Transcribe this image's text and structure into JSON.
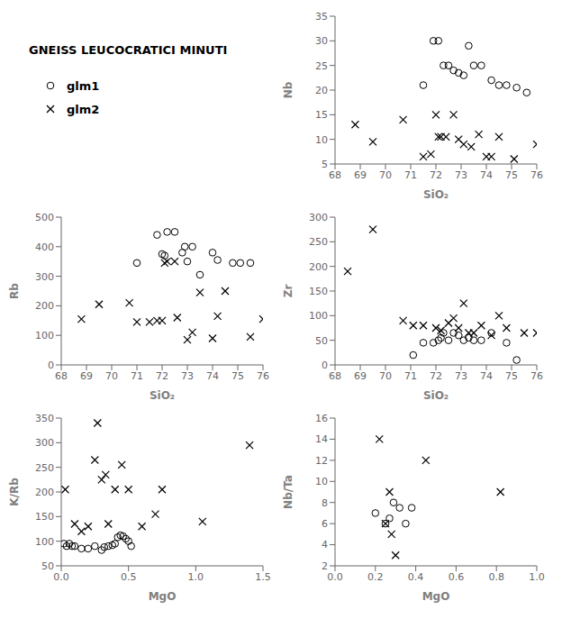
{
  "chart_data": [
    {
      "type": "scatter",
      "title": "GNEISS LEUCOCRATICI MINUTI",
      "xlabel": "SiO₂",
      "ylabel": "Nb",
      "grid": false,
      "xlim": [
        68,
        76
      ],
      "ylim": [
        5,
        35
      ],
      "xticks": [
        68,
        69,
        70,
        71,
        72,
        73,
        74,
        75,
        76
      ],
      "yticks": [
        5,
        10,
        15,
        20,
        25,
        30,
        35
      ],
      "series": [
        {
          "name": "glm1",
          "color": "black",
          "marker": "circle",
          "x": [
            71.5,
            71.9,
            72.1,
            72.3,
            72.5,
            72.7,
            72.9,
            73.1,
            73.3,
            73.5,
            73.8,
            74.2,
            74.5,
            74.8,
            75.2,
            75.6
          ],
          "values": [
            21.0,
            30.0,
            30.0,
            25.0,
            25.0,
            24.0,
            23.5,
            23.0,
            29.0,
            25.0,
            25.0,
            22.0,
            21.0,
            21.0,
            20.5,
            19.5
          ]
        },
        {
          "name": "glm2",
          "color": "black",
          "marker": "cross",
          "x": [
            68.8,
            69.5,
            70.7,
            71.5,
            71.8,
            72.0,
            72.1,
            72.2,
            72.4,
            72.7,
            72.9,
            73.1,
            73.4,
            73.7,
            74.0,
            74.2,
            74.5,
            75.1,
            76.0
          ],
          "values": [
            13.0,
            9.5,
            14.0,
            6.5,
            7.0,
            15.0,
            10.5,
            10.5,
            10.5,
            15.0,
            10.0,
            9.0,
            8.5,
            11.0,
            6.5,
            6.5,
            10.5,
            6.0,
            9.0
          ]
        }
      ]
    },
    {
      "type": "scatter",
      "xlabel": "SiO₂",
      "ylabel": "Rb",
      "grid": false,
      "xlim": [
        68,
        76
      ],
      "ylim": [
        0,
        500
      ],
      "xticks": [
        68,
        69,
        70,
        71,
        72,
        73,
        74,
        75,
        76
      ],
      "yticks": [
        0,
        100,
        200,
        300,
        400,
        500
      ],
      "series": [
        {
          "name": "glm1",
          "color": "black",
          "marker": "circle",
          "x": [
            71.0,
            71.8,
            72.0,
            72.1,
            72.2,
            72.5,
            72.8,
            72.9,
            73.0,
            73.2,
            73.5,
            74.0,
            74.2,
            74.8,
            75.1,
            75.5
          ],
          "values": [
            345,
            440,
            375,
            370,
            450,
            450,
            380,
            400,
            350,
            400,
            305,
            380,
            355,
            345,
            345,
            345
          ]
        },
        {
          "name": "glm2",
          "color": "black",
          "marker": "cross",
          "x": [
            68.8,
            69.5,
            70.7,
            71.0,
            71.5,
            71.8,
            72.0,
            72.1,
            72.2,
            72.5,
            72.6,
            73.0,
            73.2,
            73.5,
            74.0,
            74.2,
            74.5,
            75.5,
            76.0
          ],
          "values": [
            155,
            205,
            210,
            145,
            145,
            150,
            150,
            345,
            350,
            350,
            160,
            85,
            110,
            245,
            90,
            165,
            250,
            95,
            155
          ]
        }
      ]
    },
    {
      "type": "scatter",
      "xlabel": "SiO₂",
      "ylabel": "Zr",
      "grid": false,
      "xlim": [
        68,
        76
      ],
      "ylim": [
        0,
        300
      ],
      "xticks": [
        68,
        69,
        70,
        71,
        72,
        73,
        74,
        75,
        76
      ],
      "yticks": [
        0,
        50,
        100,
        150,
        200,
        250,
        300
      ],
      "series": [
        {
          "name": "glm1",
          "color": "black",
          "marker": "circle",
          "x": [
            71.1,
            71.5,
            71.9,
            72.1,
            72.2,
            72.3,
            72.5,
            72.7,
            72.9,
            73.1,
            73.3,
            73.5,
            73.8,
            74.2,
            74.8,
            75.2
          ],
          "values": [
            20,
            45,
            45,
            50,
            55,
            65,
            50,
            65,
            60,
            50,
            55,
            50,
            50,
            65,
            45,
            10
          ]
        },
        {
          "name": "glm2",
          "color": "black",
          "marker": "cross",
          "x": [
            68.5,
            69.5,
            70.7,
            71.1,
            71.5,
            72.0,
            72.2,
            72.5,
            72.7,
            72.9,
            73.1,
            73.3,
            73.5,
            73.8,
            74.2,
            74.5,
            74.8,
            75.5,
            76.0
          ],
          "values": [
            190,
            275,
            90,
            80,
            80,
            75,
            70,
            85,
            95,
            75,
            125,
            65,
            65,
            80,
            60,
            100,
            75,
            65,
            65
          ]
        }
      ]
    },
    {
      "type": "scatter",
      "xlabel": "MgO",
      "ylabel": "K/Rb",
      "grid": false,
      "xlim": [
        0,
        1.5
      ],
      "ylim": [
        50,
        350
      ],
      "xticks": [
        {
          "value": 0,
          "label": "0.0"
        },
        0.5,
        {
          "value": 1.0,
          "label": "1.0"
        },
        1.5
      ],
      "yticks": [
        50,
        100,
        150,
        200,
        250,
        300,
        350
      ],
      "series": [
        {
          "name": "glm1",
          "color": "black",
          "marker": "circle",
          "x": [
            0.02,
            0.04,
            0.06,
            0.08,
            0.1,
            0.15,
            0.2,
            0.25,
            0.3,
            0.32,
            0.35,
            0.38,
            0.4,
            0.42,
            0.44,
            0.46,
            0.48,
            0.5,
            0.52
          ],
          "values": [
            95,
            90,
            95,
            90,
            90,
            85,
            85,
            90,
            82,
            88,
            90,
            92,
            95,
            108,
            112,
            110,
            105,
            100,
            90
          ]
        },
        {
          "name": "glm2",
          "color": "black",
          "marker": "cross",
          "x": [
            0.03,
            0.1,
            0.15,
            0.2,
            0.25,
            0.27,
            0.3,
            0.33,
            0.35,
            0.4,
            0.45,
            0.5,
            0.6,
            0.7,
            0.75,
            1.05,
            1.4
          ],
          "values": [
            205,
            135,
            120,
            130,
            265,
            340,
            225,
            235,
            135,
            205,
            255,
            205,
            130,
            155,
            205,
            140,
            295
          ]
        }
      ]
    },
    {
      "type": "scatter",
      "xlabel": "MgO",
      "ylabel": "Nb/Ta",
      "grid": false,
      "xlim": [
        0,
        1.0
      ],
      "ylim": [
        2,
        16
      ],
      "xticks": [
        {
          "value": 0,
          "label": "0.0"
        },
        0.2,
        0.4,
        0.6,
        0.8,
        {
          "value": 1.0,
          "label": "1.0"
        }
      ],
      "yticks": [
        2,
        4,
        6,
        8,
        10,
        12,
        14,
        16
      ],
      "series": [
        {
          "name": "glm1",
          "color": "black",
          "marker": "circle",
          "x": [
            0.2,
            0.25,
            0.27,
            0.29,
            0.32,
            0.35,
            0.38
          ],
          "values": [
            7.0,
            6.0,
            6.5,
            8.0,
            7.5,
            6.0,
            7.5
          ]
        },
        {
          "name": "glm2",
          "color": "black",
          "marker": "cross",
          "x": [
            0.22,
            0.25,
            0.27,
            0.28,
            0.3,
            0.45,
            0.82
          ],
          "values": [
            14.0,
            6.0,
            9.0,
            5.0,
            3.0,
            12.0,
            9.0
          ]
        }
      ]
    }
  ]
}
